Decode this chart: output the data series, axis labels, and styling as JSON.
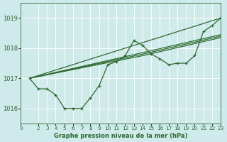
{
  "title": "Graphe pression niveau de la mer (hPa)",
  "bg_color": "#ceeaea",
  "grid_color": "#ffffff",
  "line_color": "#2d6a2d",
  "xlim": [
    0,
    23
  ],
  "ylim": [
    1015.5,
    1019.5
  ],
  "yticks": [
    1016,
    1017,
    1018,
    1019
  ],
  "xticks": [
    0,
    2,
    3,
    4,
    5,
    6,
    7,
    8,
    9,
    10,
    11,
    12,
    13,
    14,
    15,
    16,
    17,
    18,
    19,
    20,
    21,
    22,
    23
  ],
  "series_jagged": {
    "x": [
      1,
      2,
      3,
      4,
      5,
      6,
      7,
      8,
      9,
      10,
      11,
      12,
      13,
      14,
      15,
      16,
      17,
      18,
      19,
      20,
      21,
      22,
      23
    ],
    "y": [
      1017.0,
      1016.65,
      1016.65,
      1016.45,
      1016.0,
      1016.0,
      1016.0,
      1016.35,
      1016.75,
      1017.45,
      1017.55,
      1017.75,
      1018.25,
      1018.1,
      1017.8,
      1017.65,
      1017.45,
      1017.5,
      1017.5,
      1017.75,
      1018.55,
      1018.75,
      1019.0
    ]
  },
  "series_smooth1": {
    "x": [
      1,
      23
    ],
    "y": [
      1017.0,
      1019.0
    ]
  },
  "series_smooth2": {
    "x": [
      1,
      14,
      23
    ],
    "y": [
      1017.0,
      1017.75,
      1018.35
    ]
  },
  "series_smooth3": {
    "x": [
      1,
      14,
      23
    ],
    "y": [
      1017.0,
      1017.8,
      1018.4
    ]
  },
  "series_smooth4": {
    "x": [
      1,
      14,
      23
    ],
    "y": [
      1017.0,
      1017.85,
      1018.45
    ]
  }
}
